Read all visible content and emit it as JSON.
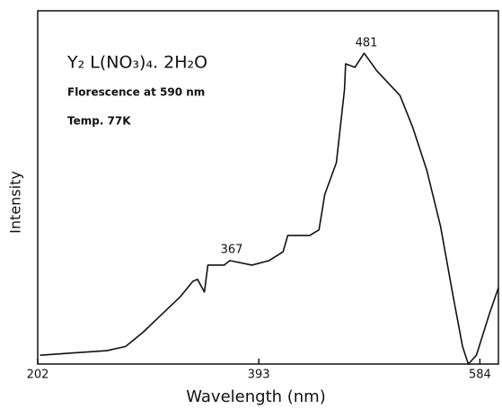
{
  "chart_data": {
    "type": "line",
    "title": "Y₂ L(NO₃)₄. 2H₂O",
    "subtitle": "Florescence at 590 nm",
    "note": "Temp. 77K",
    "x_label": "Wavelength (nm)",
    "y_label": "Intensity",
    "annotations": [
      "481",
      "367"
    ],
    "x": [
      204,
      239,
      262,
      278,
      293,
      309,
      325,
      336,
      340,
      346,
      349,
      363,
      368,
      387,
      402,
      414,
      418,
      437,
      445,
      450,
      460,
      467,
      468,
      476,
      484,
      495,
      515,
      526,
      538,
      550,
      561,
      569,
      574,
      581,
      592,
      600
    ],
    "series": [
      {
        "name": "Intensity",
        "color": "#111111",
        "values": [
          2.5,
          3.3,
          3.8,
          5,
          9,
          14,
          19,
          23.4,
          24,
          20.4,
          28,
          28,
          29.3,
          28,
          29.3,
          31.8,
          36.4,
          36.4,
          38,
          48,
          57,
          77.6,
          85,
          84,
          88,
          83,
          76,
          67,
          55,
          39,
          19,
          5,
          0,
          2.5,
          14,
          21.6
        ]
      }
    ],
    "xlim": [
      202,
      600
    ],
    "ylim": [
      0,
      100
    ],
    "xticks": [
      202,
      393,
      584
    ],
    "grid": false
  }
}
